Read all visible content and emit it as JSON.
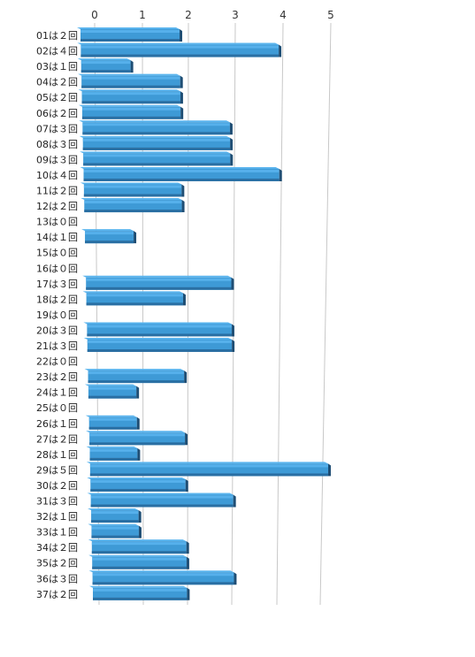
{
  "chart_data": {
    "type": "bar",
    "orientation": "horizontal",
    "style": "3d",
    "grid": true,
    "legend": "none",
    "title": "",
    "xlabel": "",
    "ylabel": "",
    "xlim": [
      0,
      5
    ],
    "x_ticks": [
      "0",
      "1",
      "2",
      "3",
      "4",
      "5"
    ],
    "categories": [
      "01は２回",
      "02は４回",
      "03は１回",
      "04は２回",
      "05は２回",
      "06は２回",
      "07は３回",
      "08は３回",
      "09は３回",
      "10は４回",
      "11は２回",
      "12は２回",
      "13は０回",
      "14は１回",
      "15は０回",
      "16は０回",
      "17は３回",
      "18は２回",
      "19は０回",
      "20は３回",
      "21は３回",
      "22は０回",
      "23は２回",
      "24は１回",
      "25は０回",
      "26は１回",
      "27は２回",
      "28は１回",
      "29は５回",
      "30は２回",
      "31は３回",
      "32は１回",
      "33は１回",
      "34は２回",
      "35は２回",
      "36は３回",
      "37は２回"
    ],
    "values": [
      2,
      4,
      1,
      2,
      2,
      2,
      3,
      3,
      3,
      4,
      2,
      2,
      0,
      1,
      0,
      0,
      3,
      2,
      0,
      3,
      3,
      0,
      2,
      1,
      0,
      1,
      2,
      1,
      5,
      2,
      3,
      1,
      1,
      2,
      2,
      3,
      2
    ],
    "colors": {
      "bar_top": "#5ab4ee",
      "bar_face": "#3e9ad6",
      "bar_side": "#1f4e74",
      "bar_bottom": "#2a6fa3",
      "grid": "#c8c8c8"
    }
  }
}
